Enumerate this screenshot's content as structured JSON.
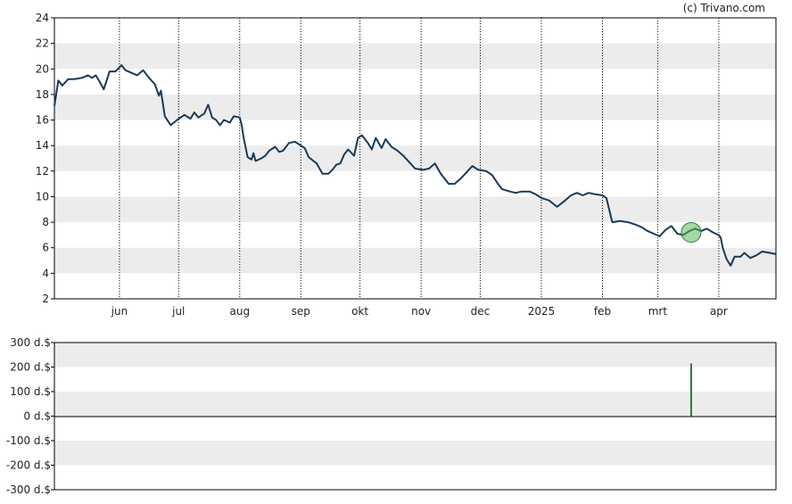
{
  "watermark": "(c) Trivano.com",
  "colors": {
    "price_line": "#1a3a5a",
    "band": "#ececec",
    "marker_fill": "#5cb85c",
    "marker_stroke": "#2e7d32",
    "volume_bar": "#2e7d32",
    "grid": "#000000"
  },
  "chart_data": [
    {
      "type": "line",
      "title": "",
      "ylim": [
        2,
        24
      ],
      "yticks": [
        "2",
        "4",
        "6",
        "8",
        "10",
        "12",
        "14",
        "16",
        "18",
        "20",
        "22",
        "24"
      ],
      "x_ticks": [
        {
          "label": "jun",
          "x": "2024-06-01"
        },
        {
          "label": "jul",
          "x": "2024-07-01"
        },
        {
          "label": "aug",
          "x": "2024-08-01"
        },
        {
          "label": "sep",
          "x": "2024-09-01"
        },
        {
          "label": "okt",
          "x": "2024-10-01"
        },
        {
          "label": "nov",
          "x": "2024-11-01"
        },
        {
          "label": "dec",
          "x": "2024-12-01"
        },
        {
          "label": "2025",
          "x": "2025-01-01"
        },
        {
          "label": "feb",
          "x": "2025-02-01"
        },
        {
          "label": "mrt",
          "x": "2025-03-01"
        },
        {
          "label": "apr",
          "x": "2025-04-01"
        }
      ],
      "xlim": [
        "2024-04-29",
        "2025-04-30"
      ],
      "grid": "vertical dotted at month starts; alternating horizontal bands",
      "series": [
        {
          "points": [
            [
              "2024-04-29",
              17.1
            ],
            [
              "2024-05-01",
              19.1
            ],
            [
              "2024-05-03",
              18.7
            ],
            [
              "2024-05-06",
              19.2
            ],
            [
              "2024-05-09",
              19.2
            ],
            [
              "2024-05-13",
              19.3
            ],
            [
              "2024-05-16",
              19.5
            ],
            [
              "2024-05-18",
              19.3
            ],
            [
              "2024-05-20",
              19.5
            ],
            [
              "2024-05-22",
              19.0
            ],
            [
              "2024-05-24",
              18.4
            ],
            [
              "2024-05-27",
              19.8
            ],
            [
              "2024-05-30",
              19.8
            ],
            [
              "2024-06-02",
              20.3
            ],
            [
              "2024-06-04",
              19.9
            ],
            [
              "2024-06-07",
              19.7
            ],
            [
              "2024-06-10",
              19.5
            ],
            [
              "2024-06-13",
              19.9
            ],
            [
              "2024-06-16",
              19.3
            ],
            [
              "2024-06-19",
              18.8
            ],
            [
              "2024-06-21",
              17.9
            ],
            [
              "2024-06-22",
              18.3
            ],
            [
              "2024-06-24",
              16.3
            ],
            [
              "2024-06-27",
              15.6
            ],
            [
              "2024-07-01",
              16.1
            ],
            [
              "2024-07-04",
              16.4
            ],
            [
              "2024-07-07",
              16.1
            ],
            [
              "2024-07-09",
              16.6
            ],
            [
              "2024-07-11",
              16.2
            ],
            [
              "2024-07-14",
              16.5
            ],
            [
              "2024-07-16",
              17.2
            ],
            [
              "2024-07-18",
              16.2
            ],
            [
              "2024-07-20",
              16.0
            ],
            [
              "2024-07-22",
              15.6
            ],
            [
              "2024-07-24",
              16.0
            ],
            [
              "2024-07-27",
              15.8
            ],
            [
              "2024-07-29",
              16.3
            ],
            [
              "2024-08-01",
              16.2
            ],
            [
              "2024-08-02",
              15.6
            ],
            [
              "2024-08-03",
              14.6
            ],
            [
              "2024-08-05",
              13.1
            ],
            [
              "2024-08-07",
              12.9
            ],
            [
              "2024-08-08",
              13.4
            ],
            [
              "2024-08-09",
              12.8
            ],
            [
              "2024-08-12",
              13.0
            ],
            [
              "2024-08-14",
              13.2
            ],
            [
              "2024-08-16",
              13.6
            ],
            [
              "2024-08-19",
              13.9
            ],
            [
              "2024-08-21",
              13.5
            ],
            [
              "2024-08-23",
              13.6
            ],
            [
              "2024-08-26",
              14.2
            ],
            [
              "2024-08-29",
              14.3
            ],
            [
              "2024-09-01",
              14.0
            ],
            [
              "2024-09-03",
              13.8
            ],
            [
              "2024-09-05",
              13.1
            ],
            [
              "2024-09-09",
              12.6
            ],
            [
              "2024-09-12",
              11.8
            ],
            [
              "2024-09-15",
              11.8
            ],
            [
              "2024-09-17",
              12.1
            ],
            [
              "2024-09-19",
              12.5
            ],
            [
              "2024-09-21",
              12.6
            ],
            [
              "2024-09-23",
              13.3
            ],
            [
              "2024-09-25",
              13.7
            ],
            [
              "2024-09-28",
              13.2
            ],
            [
              "2024-09-30",
              14.6
            ],
            [
              "2024-10-02",
              14.8
            ],
            [
              "2024-10-05",
              14.2
            ],
            [
              "2024-10-07",
              13.7
            ],
            [
              "2024-10-09",
              14.6
            ],
            [
              "2024-10-12",
              13.8
            ],
            [
              "2024-10-14",
              14.5
            ],
            [
              "2024-10-17",
              13.9
            ],
            [
              "2024-10-20",
              13.6
            ],
            [
              "2024-10-23",
              13.2
            ],
            [
              "2024-10-26",
              12.7
            ],
            [
              "2024-10-29",
              12.2
            ],
            [
              "2024-11-02",
              12.1
            ],
            [
              "2024-11-05",
              12.2
            ],
            [
              "2024-11-08",
              12.6
            ],
            [
              "2024-11-11",
              11.8
            ],
            [
              "2024-11-15",
              11.0
            ],
            [
              "2024-11-18",
              11.0
            ],
            [
              "2024-11-21",
              11.4
            ],
            [
              "2024-11-24",
              11.9
            ],
            [
              "2024-11-27",
              12.4
            ],
            [
              "2024-11-30",
              12.1
            ],
            [
              "2024-12-04",
              12.0
            ],
            [
              "2024-12-07",
              11.7
            ],
            [
              "2024-12-10",
              11.0
            ],
            [
              "2024-12-12",
              10.6
            ],
            [
              "2024-12-16",
              10.4
            ],
            [
              "2024-12-19",
              10.3
            ],
            [
              "2024-12-22",
              10.4
            ],
            [
              "2024-12-26",
              10.4
            ],
            [
              "2024-12-29",
              10.2
            ],
            [
              "2025-01-01",
              9.9
            ],
            [
              "2025-01-05",
              9.7
            ],
            [
              "2025-01-09",
              9.2
            ],
            [
              "2025-01-13",
              9.7
            ],
            [
              "2025-01-16",
              10.1
            ],
            [
              "2025-01-19",
              10.3
            ],
            [
              "2025-01-22",
              10.1
            ],
            [
              "2025-01-25",
              10.3
            ],
            [
              "2025-01-28",
              10.2
            ],
            [
              "2025-02-01",
              10.1
            ],
            [
              "2025-02-03",
              9.9
            ],
            [
              "2025-02-06",
              8.0
            ],
            [
              "2025-02-10",
              8.1
            ],
            [
              "2025-02-14",
              8.0
            ],
            [
              "2025-02-18",
              7.8
            ],
            [
              "2025-02-21",
              7.6
            ],
            [
              "2025-02-24",
              7.3
            ],
            [
              "2025-02-27",
              7.1
            ],
            [
              "2025-03-02",
              6.9
            ],
            [
              "2025-03-05",
              7.4
            ],
            [
              "2025-03-08",
              7.7
            ],
            [
              "2025-03-11",
              7.1
            ],
            [
              "2025-03-14",
              7.0
            ],
            [
              "2025-03-17",
              7.3
            ],
            [
              "2025-03-20",
              7.5
            ],
            [
              "2025-03-23",
              7.3
            ],
            [
              "2025-03-26",
              7.5
            ],
            [
              "2025-03-29",
              7.2
            ],
            [
              "2025-04-01",
              7.0
            ],
            [
              "2025-04-02",
              6.8
            ],
            [
              "2025-04-03",
              6.0
            ],
            [
              "2025-04-05",
              5.1
            ],
            [
              "2025-04-07",
              4.6
            ],
            [
              "2025-04-09",
              5.3
            ],
            [
              "2025-04-12",
              5.3
            ],
            [
              "2025-04-14",
              5.6
            ],
            [
              "2025-04-17",
              5.2
            ],
            [
              "2025-04-20",
              5.4
            ],
            [
              "2025-04-23",
              5.7
            ],
            [
              "2025-04-27",
              5.6
            ],
            [
              "2025-04-30",
              5.5
            ]
          ]
        }
      ],
      "marker": {
        "x": "2025-03-18",
        "y": 7.2
      }
    },
    {
      "type": "bar",
      "ylim": [
        -300,
        300
      ],
      "yticks": [
        "300 d.$",
        "200 d.$",
        "100 d.$",
        "0 d.$",
        "-100 d.$",
        "-200 d.$",
        "-300 d.$"
      ],
      "bars": [
        {
          "x": "2025-03-18",
          "value": 215
        }
      ]
    }
  ]
}
